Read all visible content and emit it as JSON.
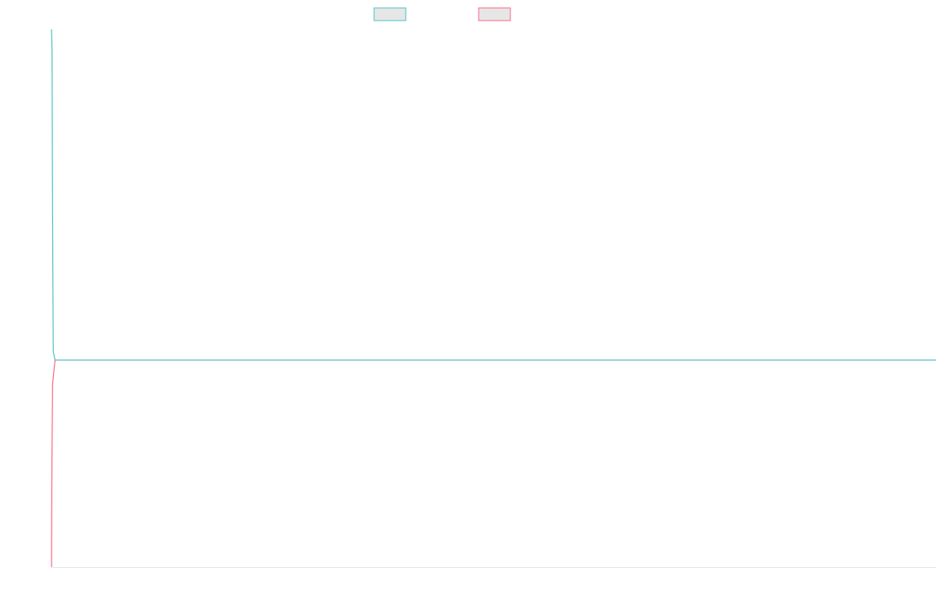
{
  "chart_data": {
    "type": "line",
    "title": "",
    "xlabel": "",
    "ylabel": "",
    "grid": false,
    "legend": {
      "placement": "top-center",
      "entries": [
        {
          "label": "",
          "stroke": "#4bc0c0",
          "fill": "#e6e6e6"
        },
        {
          "label": "",
          "stroke": "#ff6384",
          "fill": "#e6e6e6"
        }
      ]
    },
    "ylim": [
      0,
      1
    ],
    "series": [
      {
        "color": "#4bc0c0",
        "points": [
          [
            0,
            1
          ],
          [
            0.0006,
            0.96
          ],
          [
            0.001,
            0.75
          ],
          [
            0.0015,
            0.55
          ],
          [
            0.002,
            0.4
          ],
          [
            0.004,
            0.385
          ],
          [
            1,
            0.385
          ]
        ]
      },
      {
        "color": "#ff6384",
        "points": [
          [
            0,
            0
          ],
          [
            0.0005,
            0.2
          ],
          [
            0.0012,
            0.34
          ],
          [
            0.004,
            0.385
          ],
          [
            1,
            0.385
          ]
        ]
      }
    ]
  }
}
